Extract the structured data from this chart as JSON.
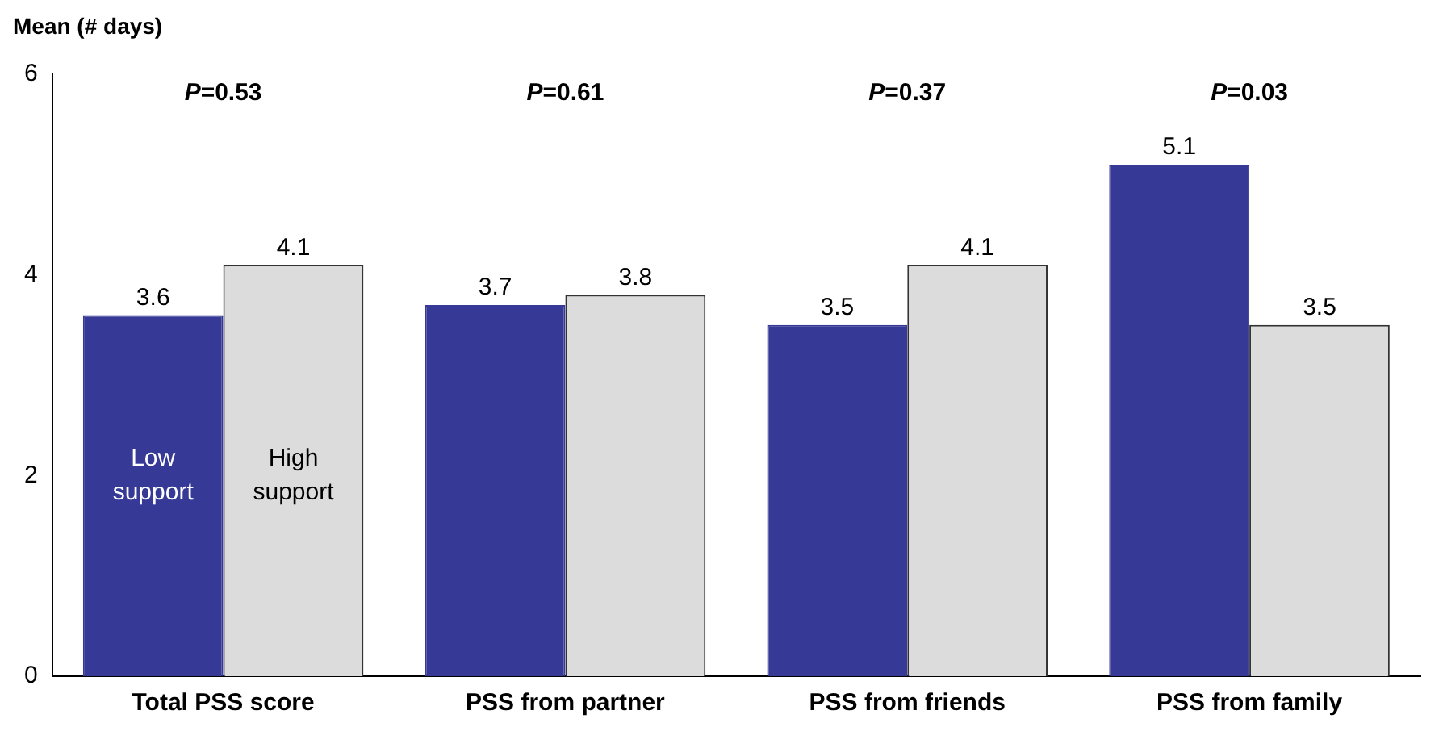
{
  "chart_data": {
    "type": "bar",
    "ylabel": "Mean (# days)",
    "categories": [
      "Total PSS score",
      "PSS from partner",
      "PSS from friends",
      "PSS from family"
    ],
    "series": [
      {
        "name": "Low support",
        "color": "#363996",
        "values": [
          3.6,
          3.7,
          3.5,
          5.1
        ]
      },
      {
        "name": "High support",
        "color": "#dcdcdc",
        "values": [
          4.1,
          3.8,
          4.1,
          3.5
        ]
      }
    ],
    "ylim": [
      0,
      6
    ],
    "yticks": [
      0,
      2,
      4,
      6
    ],
    "grid": false,
    "legend": false,
    "data_labels": true,
    "annotations": [
      "P=0.53",
      "P=0.61",
      "P=0.37",
      "P=0.03"
    ]
  }
}
